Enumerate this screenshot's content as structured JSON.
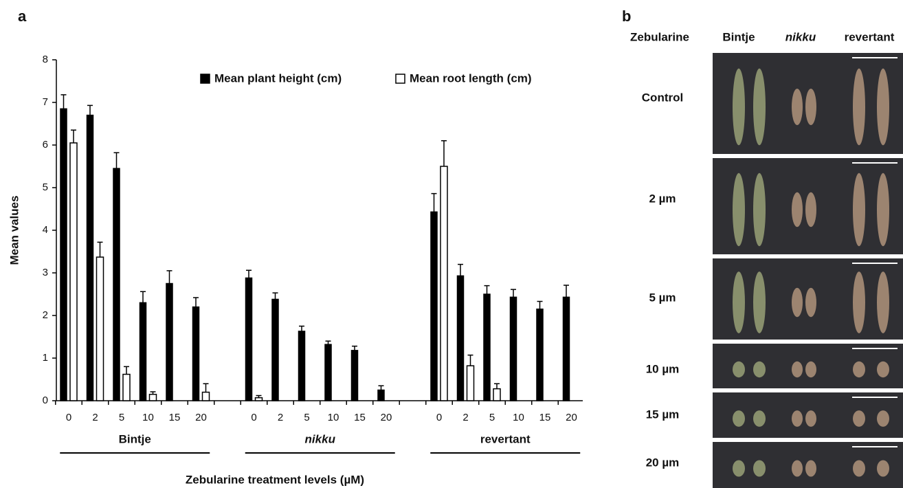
{
  "chart_data": {
    "type": "bar",
    "panel_label": "a",
    "y_label": "Mean values",
    "x_label": "Zebularine treatment levels (µM)",
    "groups": [
      "Bintje",
      "nikku",
      "revertant"
    ],
    "categories": [
      "0",
      "2",
      "5",
      "10",
      "15",
      "20",
      "0",
      "2",
      "5",
      "10",
      "15",
      "20",
      "0",
      "2",
      "5",
      "10",
      "15",
      "20"
    ],
    "series": [
      {
        "name": "Mean plant height (cm)",
        "color": "#000000",
        "values": [
          6.85,
          6.7,
          5.45,
          2.3,
          2.75,
          2.2,
          2.88,
          2.38,
          1.63,
          1.32,
          1.18,
          0.25,
          4.43,
          2.93,
          2.5,
          2.43,
          2.15,
          2.43
        ],
        "errors": [
          0.33,
          0.23,
          0.37,
          0.26,
          0.3,
          0.22,
          0.18,
          0.15,
          0.12,
          0.08,
          0.1,
          0.1,
          0.43,
          0.27,
          0.2,
          0.18,
          0.18,
          0.28
        ]
      },
      {
        "name": "Mean root length (cm)",
        "color": "#ffffff",
        "values": [
          6.05,
          3.37,
          0.62,
          0.15,
          null,
          0.2,
          0.07,
          null,
          null,
          null,
          null,
          null,
          5.5,
          0.82,
          0.28,
          null,
          null,
          null
        ],
        "errors": [
          0.3,
          0.35,
          0.18,
          0.06,
          null,
          0.2,
          0.05,
          null,
          null,
          null,
          null,
          null,
          0.6,
          0.25,
          0.12,
          null,
          null,
          null
        ]
      }
    ],
    "ylim": [
      0,
      8
    ],
    "yticks": [
      0,
      1,
      2,
      3,
      4,
      5,
      6,
      7,
      8
    ],
    "grid": false
  },
  "panel_b": {
    "label": "b",
    "header": [
      "Zebularine",
      "Bintje",
      "nikku",
      "revertant"
    ],
    "rows": [
      "Control",
      "2 µm",
      "5 µm",
      "10 µm",
      "15 µm",
      "20 µm"
    ]
  }
}
